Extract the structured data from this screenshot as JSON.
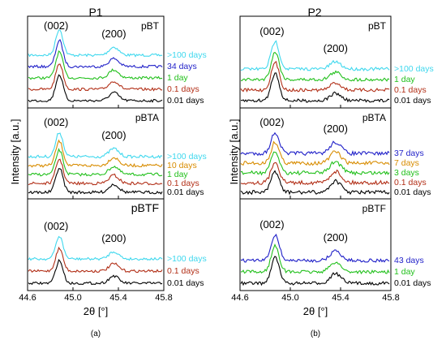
{
  "figure": {
    "ylabel": "Intensity [a.u.]",
    "xlabel": "2θ [°]",
    "x_ticks": [
      "44.6",
      "45.0",
      "45.4",
      "45.8"
    ],
    "columns": [
      {
        "id": "P1",
        "title": "P1",
        "caption": "(a)"
      },
      {
        "id": "P2",
        "title": "P2",
        "caption": "(b)"
      }
    ],
    "peak_labels": [
      "(002)",
      "(200)"
    ],
    "colors": {
      "0.01 days": "#000000",
      "0.1 days": "#b22f17",
      "1 day": "#22c01c",
      "3 days": "#22c01c",
      "7 days": "#d88c00",
      "10 days": "#d88c00",
      "34 days": "#1f1fc8",
      "37 days": "#1f1fc8",
      "43 days": "#1f1fc8",
      ">100 days": "#3fd8ee"
    }
  },
  "chart_data": [
    {
      "type": "line",
      "column": "P1",
      "panel": "pBT",
      "xlim": [
        44.6,
        45.8
      ],
      "series": [
        {
          "name": ">100 days",
          "peak002": 44.88,
          "peak200": 45.36
        },
        {
          "name": "34 days",
          "peak002": 44.88,
          "peak200": 45.36
        },
        {
          "name": "1 day",
          "peak002": 44.88,
          "peak200": 45.36
        },
        {
          "name": "0.1 days",
          "peak002": 44.88,
          "peak200": 45.36
        },
        {
          "name": "0.01 days",
          "peak002": 44.88,
          "peak200": 45.36
        }
      ]
    },
    {
      "type": "line",
      "column": "P1",
      "panel": "pBTA",
      "xlim": [
        44.6,
        45.8
      ],
      "series": [
        {
          "name": ">100 days",
          "peak002": 44.88,
          "peak200": 45.36
        },
        {
          "name": "10 days",
          "peak002": 44.88,
          "peak200": 45.36
        },
        {
          "name": "1 day",
          "peak002": 44.88,
          "peak200": 45.36
        },
        {
          "name": "0.1 days",
          "peak002": 44.88,
          "peak200": 45.36
        },
        {
          "name": "0.01 days",
          "peak002": 44.88,
          "peak200": 45.36
        }
      ]
    },
    {
      "type": "line",
      "column": "P1",
      "panel": "pBTF",
      "xlim": [
        44.6,
        45.8
      ],
      "series": [
        {
          "name": ">100 days",
          "peak002": 44.88,
          "peak200": 45.36
        },
        {
          "name": "0.1 days",
          "peak002": 44.88,
          "peak200": 45.36
        },
        {
          "name": "0.01 days",
          "peak002": 44.88,
          "peak200": 45.36
        }
      ]
    },
    {
      "type": "line",
      "column": "P2",
      "panel": "pBT",
      "xlim": [
        44.6,
        45.8
      ],
      "series": [
        {
          "name": ">100 days",
          "peak002": 44.88,
          "peak200": 45.36
        },
        {
          "name": "1 day",
          "peak002": 44.88,
          "peak200": 45.36
        },
        {
          "name": "0.1 days",
          "peak002": 44.88,
          "peak200": 45.36
        },
        {
          "name": "0.01 days",
          "peak002": 44.88,
          "peak200": 45.36
        }
      ]
    },
    {
      "type": "line",
      "column": "P2",
      "panel": "pBTA",
      "xlim": [
        44.6,
        45.8
      ],
      "series": [
        {
          "name": "37 days",
          "peak002": 44.88,
          "peak200": 45.36
        },
        {
          "name": "7 days",
          "peak002": 44.88,
          "peak200": 45.36
        },
        {
          "name": "3 days",
          "peak002": 44.88,
          "peak200": 45.36
        },
        {
          "name": "0.1 days",
          "peak002": 44.88,
          "peak200": 45.36
        },
        {
          "name": "0.01 days",
          "peak002": 44.88,
          "peak200": 45.36
        }
      ]
    },
    {
      "type": "line",
      "column": "P2",
      "panel": "pBTF",
      "xlim": [
        44.6,
        45.8
      ],
      "series": [
        {
          "name": "43 days",
          "peak002": 44.88,
          "peak200": 45.36
        },
        {
          "name": "1 day",
          "peak002": 44.88,
          "peak200": 45.36
        },
        {
          "name": "0.01 days",
          "peak002": 44.88,
          "peak200": 45.36
        }
      ]
    }
  ]
}
